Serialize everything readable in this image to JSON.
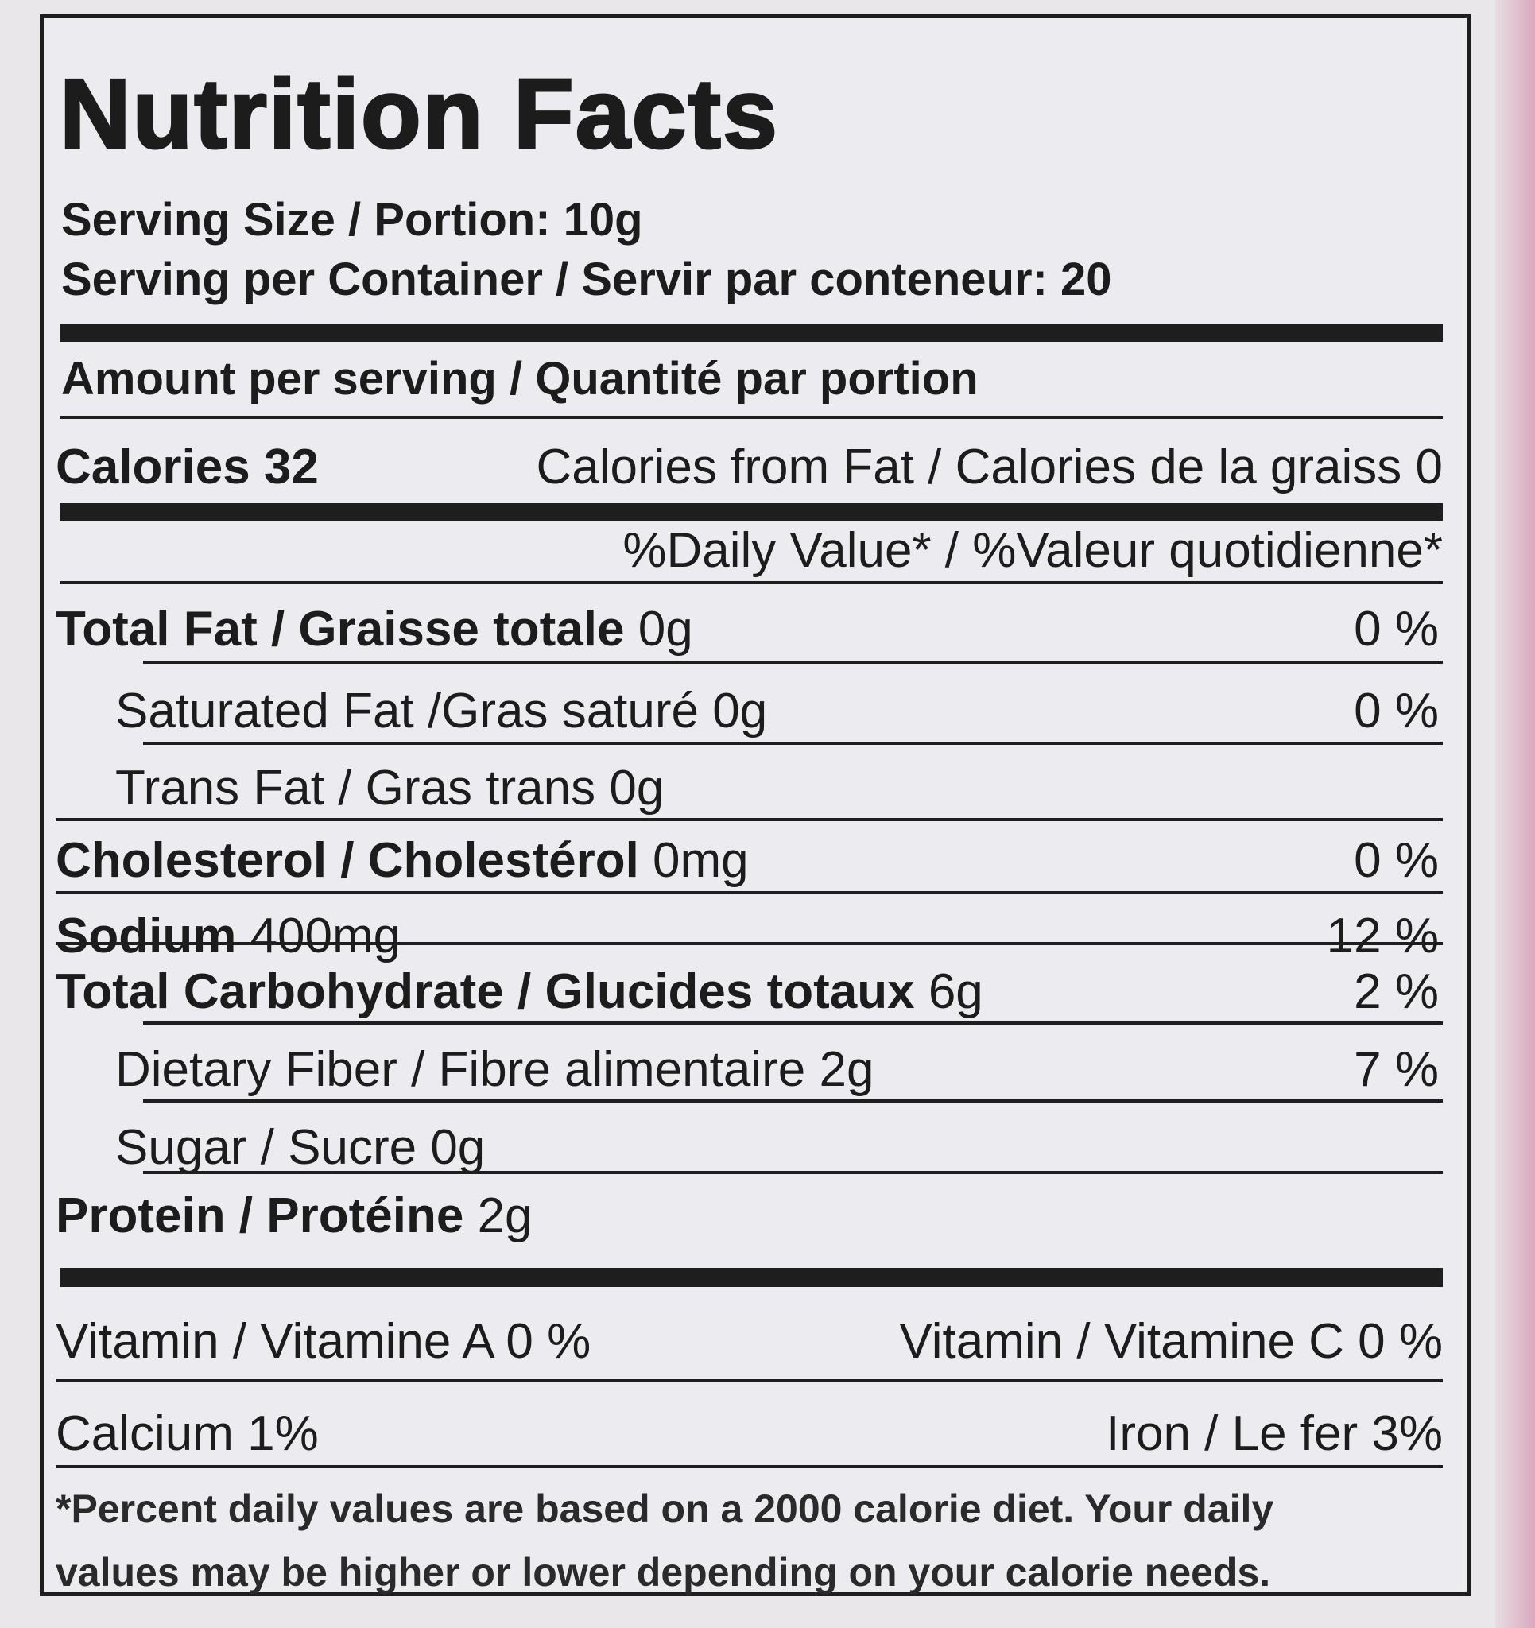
{
  "title": "Nutrition Facts",
  "serving_size": "Serving Size / Portion: 10g",
  "servings_per_container": "Serving per Container / Servir par conteneur: 20",
  "amount_per_serving": "Amount per serving / Quantité par portion",
  "calories": "Calories 32",
  "calories_from_fat": "Calories from Fat / Calories de la graiss 0",
  "daily_value_header": "%Daily Value* / %Valeur quotidienne*",
  "nutrients": [
    {
      "label": "Total Fat / Graisse totale",
      "amount": "0g",
      "dv": "0 %"
    },
    {
      "label": "Saturated Fat /Gras saturé",
      "amount": "0g",
      "dv": "0 %"
    },
    {
      "label": "Trans Fat / Gras trans",
      "amount": "0g",
      "dv": ""
    },
    {
      "label": "Cholesterol / Cholestérol",
      "amount": "0mg",
      "dv": "0 %"
    },
    {
      "label": "Sodium",
      "amount": "400mg",
      "dv": "12 %"
    },
    {
      "label": "Total Carbohydrate / Glucides totaux",
      "amount": "6g",
      "dv": "2 %"
    },
    {
      "label": "Dietary Fiber /  Fibre alimentaire",
      "amount": "2g",
      "dv": "7 %"
    },
    {
      "label": "Sugar / Sucre",
      "amount": "0g",
      "dv": ""
    },
    {
      "label": "Protein / Protéine",
      "amount": "2g",
      "dv": ""
    }
  ],
  "vitamins": [
    {
      "left": "Vitamin / Vitamine A 0 %",
      "right": "Vitamin / Vitamine C 0 %"
    },
    {
      "left": "Calcium 1%",
      "right": "Iron / Le fer  3%"
    }
  ],
  "footnote": [
    "*Percent daily values are based on a 2000 calorie diet. Your daily",
    "values may be higher or lower depending on your calorie needs."
  ]
}
